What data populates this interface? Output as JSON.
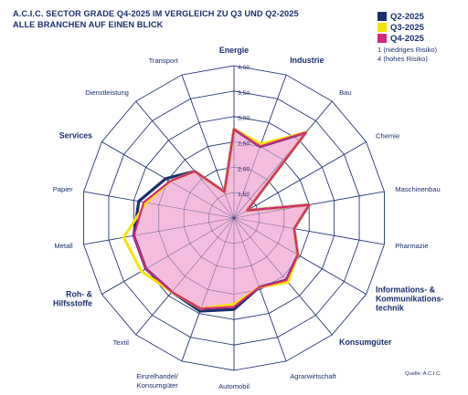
{
  "header": {
    "title_line1": "A.C.I.C. SECTOR GRADE Q4-2025 IM VERGLEICH ZU Q3 UND Q2-2025",
    "title_line2": "ALLE BRANCHEN AUF EINEN BLICK"
  },
  "legend": {
    "items": [
      {
        "label": "Q2-2025",
        "color": "#1a2f6e"
      },
      {
        "label": "Q3-2025",
        "color": "#f5e400"
      },
      {
        "label": "Q4-2025",
        "color": "#d4267f"
      }
    ]
  },
  "scale_note": {
    "line1": "1 (niedriges Risiko)",
    "line2": "4 (hohes Risiko)"
  },
  "source": "Quelle: A.C.I.C.",
  "chart_data": {
    "type": "radar",
    "title": "A.C.I.C. SECTOR GRADE Q4-2025 IM VERGLEICH ZU Q3 UND Q2-2025",
    "subtitle": "ALLE BRANCHEN AUF EINEN BLICK",
    "rmin": 1.0,
    "rmax": 4.0,
    "ticks": [
      "1,50",
      "2,00",
      "2,50",
      "3,00",
      "3,50",
      "4,00"
    ],
    "tick_values": [
      1.5,
      2.0,
      2.5,
      3.0,
      3.5,
      4.0
    ],
    "categories": [
      {
        "label": "Energie",
        "bold": true
      },
      {
        "label": "Industrie",
        "bold": true
      },
      {
        "label": "Bau",
        "bold": false
      },
      {
        "label": "Chemie",
        "bold": false
      },
      {
        "label": "Maschinenbau",
        "bold": false
      },
      {
        "label": "Pharmazie",
        "bold": false
      },
      {
        "label": "Informations- & Kommunikations- technik",
        "lines": [
          "Informations- &",
          "Kommunikations-",
          "technik"
        ],
        "bold": true
      },
      {
        "label": "Konsumgüter",
        "bold": true
      },
      {
        "label": "Agrarwirtschaft",
        "bold": false
      },
      {
        "label": "Automobil",
        "bold": false
      },
      {
        "label": "Einzelhandel/ Konsumgüter",
        "lines": [
          "Einzelhandel/",
          "Konsumgüter"
        ],
        "bold": false
      },
      {
        "label": "Textil",
        "bold": false
      },
      {
        "label": "Roh- & Hilfsstoffe",
        "lines": [
          "Roh- &",
          "Hilfsstoffe"
        ],
        "bold": true
      },
      {
        "label": "Metall",
        "bold": false
      },
      {
        "label": "Papier",
        "bold": false
      },
      {
        "label": "Services",
        "bold": true
      },
      {
        "label": "Dienstleistung",
        "bold": false
      },
      {
        "label": "Transport",
        "bold": false
      }
    ],
    "series": [
      {
        "name": "Q2-2025",
        "color": "#1a2f6e",
        "values": [
          2.75,
          2.5,
          3.2,
          1.3,
          2.5,
          2.2,
          2.45,
          2.6,
          2.45,
          2.8,
          2.95,
          2.9,
          3.0,
          3.0,
          2.9,
          2.55,
          2.2,
          1.55
        ]
      },
      {
        "name": "Q3-2025",
        "color": "#f5e400",
        "values": [
          2.75,
          2.55,
          3.2,
          1.3,
          2.5,
          2.2,
          2.45,
          2.65,
          2.45,
          2.7,
          2.9,
          2.9,
          3.1,
          3.2,
          2.75,
          2.45,
          2.2,
          1.55
        ]
      },
      {
        "name": "Q4-2025",
        "color": "#d4267f",
        "fill": "#f4bcdd",
        "values": [
          2.75,
          2.5,
          3.2,
          1.3,
          2.5,
          2.2,
          2.45,
          2.6,
          2.45,
          2.75,
          2.9,
          2.9,
          3.0,
          3.0,
          2.8,
          2.45,
          2.2,
          1.55
        ]
      }
    ]
  }
}
